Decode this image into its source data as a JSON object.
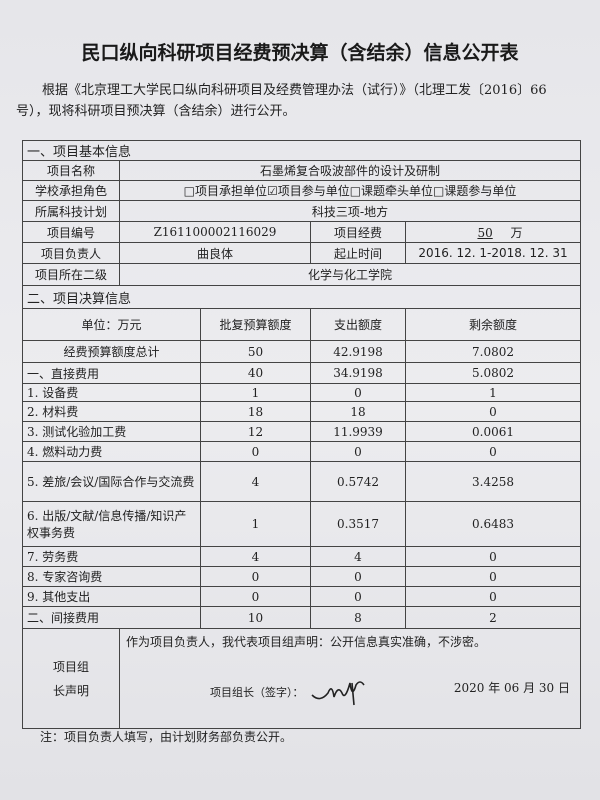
{
  "title": "民口纵向科研项目经费预决算（含结余）信息公开表",
  "intro": "根据《北京理工大学民口纵向科研项目及经费管理办法（试行）》（北理工发〔2016〕66号），现将科研项目预决算（含结余）进行公开。",
  "basic": {
    "section": "一、项目基本信息",
    "name_label": "项目名称",
    "name": "石墨烯复合吸波部件的设计及研制",
    "role_label": "学校承担角色",
    "role": "□项目承担单位☑项目参与单位□课题牵头单位□课题参与单位",
    "plan_label": "所属科技计划",
    "plan": "科技三项-地方",
    "code_label": "项目编号",
    "code": "Z161100002116029",
    "fund_label": "项目经费",
    "fund": "50",
    "fund_unit": "万",
    "leader_label": "项目负责人",
    "leader": "曲良体",
    "period_label": "起止时间",
    "period": "2016. 12. 1-2018. 12. 31",
    "dept_label": "项目所在二级",
    "dept": "化学与化工学院"
  },
  "budget": {
    "section": "二、项目决算信息",
    "headers": [
      "单位：万元",
      "批复预算额度",
      "支出额度",
      "剩余额度"
    ],
    "rows": [
      [
        "经费预算额度总计",
        "50",
        "42.9198",
        "7.0802"
      ],
      [
        "一、直接费用",
        "40",
        "34.9198",
        "5.0802"
      ],
      [
        "1. 设备费",
        "1",
        "0",
        "1"
      ],
      [
        "2. 材料费",
        "18",
        "18",
        "0"
      ],
      [
        "3. 测试化验加工费",
        "12",
        "11.9939",
        "0.0061"
      ],
      [
        "4. 燃料动力费",
        "0",
        "0",
        "0"
      ],
      [
        "5. 差旅/会议/国际合作与交流费",
        "4",
        "0.5742",
        "3.4258"
      ],
      [
        "6. 出版/文献/信息传播/知识产权事务费",
        "1",
        "0.3517",
        "0.6483"
      ],
      [
        "7. 劳务费",
        "4",
        "4",
        "0"
      ],
      [
        "8. 专家咨询费",
        "0",
        "0",
        "0"
      ],
      [
        "9. 其他支出",
        "0",
        "0",
        "0"
      ],
      [
        "二、间接费用",
        "10",
        "8",
        "2"
      ]
    ]
  },
  "declaration": {
    "label": "项目组长声明",
    "text": "作为项目负责人，我代表项目组声明：公开信息真实准确，不涉密。",
    "sign_label": "项目组长（签字）：",
    "signature": "曲良体",
    "date": "2020 年 06 月 30 日"
  },
  "note": "注：项目负责人填写，由计划财务部负责公开。"
}
